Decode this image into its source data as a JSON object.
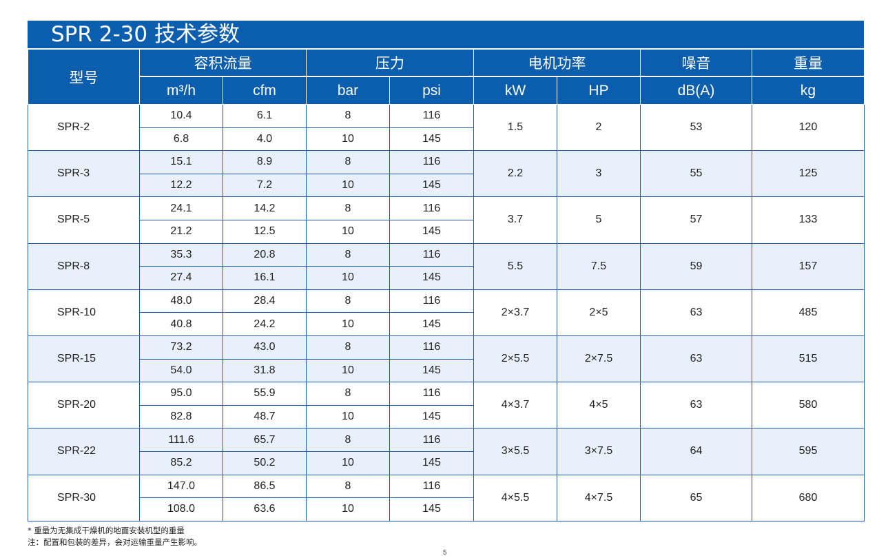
{
  "title": "SPR 2-30 技术参数",
  "headers": {
    "model": "型号",
    "flow": "容积流量",
    "pressure": "压力",
    "motor_power": "电机功率",
    "noise": "噪音",
    "weight": "重量"
  },
  "units": {
    "flow_metric": "m³/h",
    "flow_imperial": "cfm",
    "pressure_metric": "bar",
    "pressure_imperial": "psi",
    "power_metric": "kW",
    "power_imperial": "HP",
    "noise": "dB(A)",
    "weight": "kg"
  },
  "rows": [
    {
      "model": "SPR-2",
      "kw": "1.5",
      "hp": "2",
      "db": "53",
      "kg": "120",
      "sub": [
        {
          "m3h": "10.4",
          "cfm": "6.1",
          "bar": "8",
          "psi": "116"
        },
        {
          "m3h": "6.8",
          "cfm": "4.0",
          "bar": "10",
          "psi": "145"
        }
      ]
    },
    {
      "model": "SPR-3",
      "kw": "2.2",
      "hp": "3",
      "db": "55",
      "kg": "125",
      "sub": [
        {
          "m3h": "15.1",
          "cfm": "8.9",
          "bar": "8",
          "psi": "116"
        },
        {
          "m3h": "12.2",
          "cfm": "7.2",
          "bar": "10",
          "psi": "145"
        }
      ]
    },
    {
      "model": "SPR-5",
      "kw": "3.7",
      "hp": "5",
      "db": "57",
      "kg": "133",
      "sub": [
        {
          "m3h": "24.1",
          "cfm": "14.2",
          "bar": "8",
          "psi": "116"
        },
        {
          "m3h": "21.2",
          "cfm": "12.5",
          "bar": "10",
          "psi": "145"
        }
      ]
    },
    {
      "model": "SPR-8",
      "kw": "5.5",
      "hp": "7.5",
      "db": "59",
      "kg": "157",
      "sub": [
        {
          "m3h": "35.3",
          "cfm": "20.8",
          "bar": "8",
          "psi": "116"
        },
        {
          "m3h": "27.4",
          "cfm": "16.1",
          "bar": "10",
          "psi": "145"
        }
      ]
    },
    {
      "model": "SPR-10",
      "kw": "2×3.7",
      "hp": "2×5",
      "db": "63",
      "kg": "485",
      "sub": [
        {
          "m3h": "48.0",
          "cfm": "28.4",
          "bar": "8",
          "psi": "116"
        },
        {
          "m3h": "40.8",
          "cfm": "24.2",
          "bar": "10",
          "psi": "145"
        }
      ]
    },
    {
      "model": "SPR-15",
      "kw": "2×5.5",
      "hp": "2×7.5",
      "db": "63",
      "kg": "515",
      "sub": [
        {
          "m3h": "73.2",
          "cfm": "43.0",
          "bar": "8",
          "psi": "116"
        },
        {
          "m3h": "54.0",
          "cfm": "31.8",
          "bar": "10",
          "psi": "145"
        }
      ]
    },
    {
      "model": "SPR-20",
      "kw": "4×3.7",
      "hp": "4×5",
      "db": "63",
      "kg": "580",
      "sub": [
        {
          "m3h": "95.0",
          "cfm": "55.9",
          "bar": "8",
          "psi": "116"
        },
        {
          "m3h": "82.8",
          "cfm": "48.7",
          "bar": "10",
          "psi": "145"
        }
      ]
    },
    {
      "model": "SPR-22",
      "kw": "3×5.5",
      "hp": "3×7.5",
      "db": "64",
      "kg": "595",
      "sub": [
        {
          "m3h": "111.6",
          "cfm": "65.7",
          "bar": "8",
          "psi": "116"
        },
        {
          "m3h": "85.2",
          "cfm": "50.2",
          "bar": "10",
          "psi": "145"
        }
      ]
    },
    {
      "model": "SPR-30",
      "kw": "4×5.5",
      "hp": "4×7.5",
      "db": "65",
      "kg": "680",
      "sub": [
        {
          "m3h": "147.0",
          "cfm": "86.5",
          "bar": "8",
          "psi": "116"
        },
        {
          "m3h": "108.0",
          "cfm": "63.6",
          "bar": "10",
          "psi": "145"
        }
      ]
    }
  ],
  "footnotes": {
    "weight_note": "* 重量为无集成干燥机的地面安装机型的重量",
    "config_note": "注：配置和包装的差异，会对运输重量产生影响。"
  },
  "page_number": "5",
  "colors": {
    "header_blue": "#0b5eae",
    "row_shade": "#e8f1fb",
    "grid_line": "#1f5aa6"
  }
}
